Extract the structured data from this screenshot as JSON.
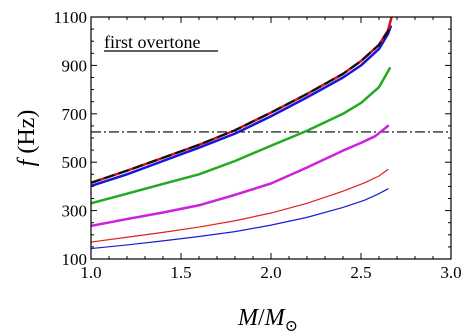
{
  "chart_data": {
    "type": "line",
    "annotation": "first overtone",
    "xlabel": {
      "main": "M",
      "slash": "/",
      "sub": "M",
      "sub_symbol": "⊙"
    },
    "ylabel": {
      "main": "f",
      "unit": " (Hz)"
    },
    "xlim": [
      1.0,
      3.0
    ],
    "ylim": [
      100,
      1100
    ],
    "xticks": [
      1.0,
      1.5,
      2.0,
      2.5,
      3.0
    ],
    "xtick_labels": [
      "1.0",
      "1.5",
      "2.0",
      "2.5",
      "3.0"
    ],
    "yticks": [
      100,
      300,
      500,
      700,
      900,
      1100
    ],
    "ytick_labels": [
      "100",
      "300",
      "500",
      "700",
      "900",
      "1100"
    ],
    "reference_line": {
      "y": 625,
      "style": "dash-dot",
      "color": "#000000"
    },
    "series": [
      {
        "color": "#1a1ad8",
        "width": 1.2,
        "dash": "",
        "x": [
          1.0,
          1.2,
          1.4,
          1.6,
          1.8,
          2.0,
          2.2,
          2.4,
          2.52,
          2.6,
          2.65
        ],
        "y": [
          143,
          158,
          175,
          193,
          213,
          240,
          272,
          313,
          343,
          370,
          390
        ]
      },
      {
        "color": "#e02020",
        "width": 1.2,
        "dash": "",
        "x": [
          1.0,
          1.2,
          1.4,
          1.6,
          1.8,
          2.0,
          2.2,
          2.4,
          2.52,
          2.6,
          2.65
        ],
        "y": [
          170,
          190,
          210,
          232,
          258,
          290,
          330,
          380,
          415,
          443,
          470
        ]
      },
      {
        "color": "#cc22dd",
        "width": 2.5,
        "dash": "",
        "x": [
          1.0,
          1.2,
          1.4,
          1.6,
          1.8,
          2.0,
          2.2,
          2.4,
          2.5,
          2.58,
          2.65
        ],
        "y": [
          237,
          265,
          292,
          322,
          365,
          412,
          478,
          548,
          580,
          608,
          650
        ]
      },
      {
        "color": "#22aa22",
        "width": 2.5,
        "dash": "",
        "x": [
          1.0,
          1.2,
          1.4,
          1.6,
          1.8,
          2.0,
          2.2,
          2.4,
          2.5,
          2.6,
          2.66
        ],
        "y": [
          330,
          370,
          410,
          450,
          505,
          568,
          630,
          700,
          745,
          810,
          888
        ]
      },
      {
        "color": "#1515dd",
        "width": 2.5,
        "dash": "",
        "x": [
          1.0,
          1.2,
          1.4,
          1.6,
          1.8,
          2.0,
          2.2,
          2.4,
          2.5,
          2.6,
          2.65,
          2.665
        ],
        "y": [
          402,
          450,
          505,
          560,
          618,
          690,
          768,
          850,
          900,
          968,
          1030,
          1060
        ]
      },
      {
        "color": "#dd1111",
        "width": 2.5,
        "dash": "",
        "x": [
          1.0,
          1.2,
          1.4,
          1.6,
          1.8,
          2.0,
          2.2,
          2.4,
          2.5,
          2.6,
          2.65,
          2.67
        ],
        "y": [
          415,
          465,
          518,
          572,
          632,
          705,
          782,
          865,
          918,
          985,
          1045,
          1100
        ]
      },
      {
        "color": "#111111",
        "width": 2.2,
        "dash": "9 6",
        "x": [
          1.0,
          1.2,
          1.4,
          1.6,
          1.8,
          2.0,
          2.2,
          2.4,
          2.5,
          2.6,
          2.65,
          2.66
        ],
        "y": [
          415,
          465,
          518,
          572,
          632,
          705,
          782,
          865,
          918,
          985,
          1040,
          1065
        ]
      }
    ]
  }
}
